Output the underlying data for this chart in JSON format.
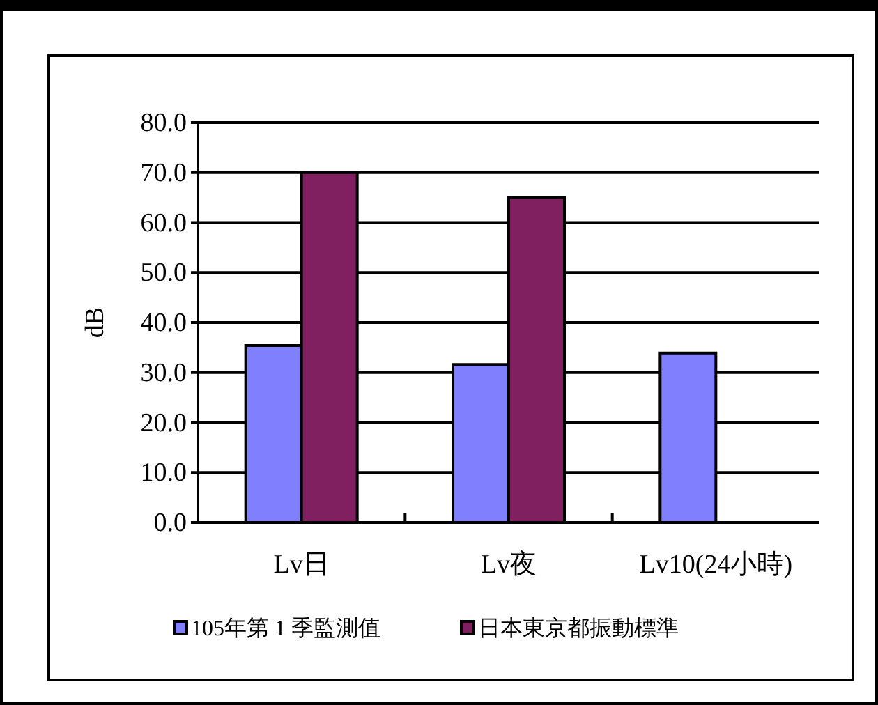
{
  "chart_data": {
    "type": "bar",
    "ylabel": "dB",
    "categories": [
      "Lv日",
      "Lv夜",
      "Lv10(24小時)"
    ],
    "series": [
      {
        "name": "105年第 1 季監測值",
        "color": "#8080ff",
        "values": [
          35.4,
          31.6,
          33.9
        ]
      },
      {
        "name": "日本東京都振動標準",
        "color": "#802060",
        "values": [
          70,
          65,
          null
        ]
      }
    ],
    "ylim": [
      0,
      80
    ],
    "yticks": [
      {
        "value": 0,
        "label": "0.0"
      },
      {
        "value": 10,
        "label": "10.0"
      },
      {
        "value": 20,
        "label": "20.0"
      },
      {
        "value": 30,
        "label": "30.0"
      },
      {
        "value": 40,
        "label": "40.0"
      },
      {
        "value": 50,
        "label": "50.0"
      },
      {
        "value": 60,
        "label": "60.0"
      },
      {
        "value": 70,
        "label": "70.0"
      },
      {
        "value": 80,
        "label": "80.0"
      }
    ],
    "grid": "y",
    "legend": "bottom"
  }
}
